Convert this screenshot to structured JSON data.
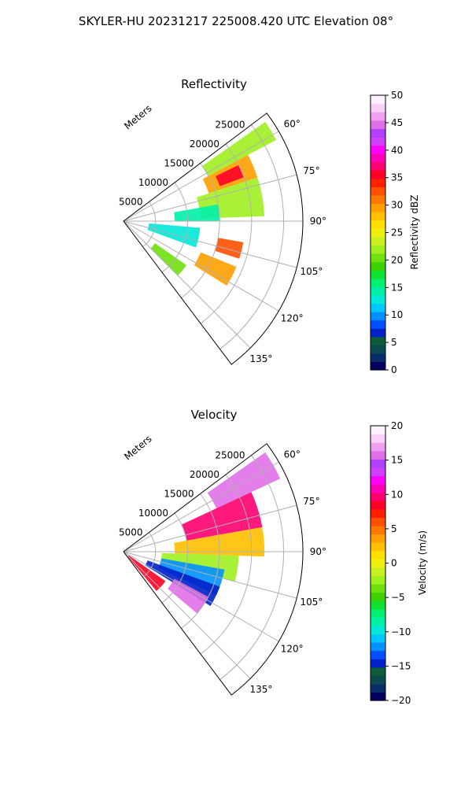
{
  "figure": {
    "suptitle": "SKYLER-HU  20231217  225008.420 UTC Elevation 08°"
  },
  "chart_data": [
    {
      "type": "heatmap",
      "projection": "polar-sector",
      "title": "Reflectivity",
      "radial_axis_label": "Meters",
      "radial_range": [
        0,
        28000
      ],
      "radial_ticks": [
        5000,
        10000,
        15000,
        20000,
        25000
      ],
      "radial_tick_labels": [
        "5000",
        "10000",
        "15000",
        "20000",
        "25000"
      ],
      "azimuth_range_deg": [
        53,
        143
      ],
      "azimuth_ticks": [
        60,
        75,
        90,
        105,
        120,
        135
      ],
      "azimuth_tick_labels": [
        "60°",
        "75°",
        "90°",
        "105°",
        "120°",
        "135°"
      ],
      "grid": true,
      "colorbar": {
        "label": "Reflectivity dBZ",
        "range": [
          0,
          50
        ],
        "ticks": [
          0,
          5,
          10,
          15,
          20,
          25,
          30,
          35,
          40,
          45,
          50
        ],
        "tick_labels": [
          "0",
          "5",
          "10",
          "15",
          "20",
          "25",
          "30",
          "35",
          "40",
          "45",
          "50"
        ],
        "colors": [
          "#02005c",
          "#0a2d6a",
          "#0b4a4e",
          "#0f5b3a",
          "#0020c8",
          "#0050ff",
          "#0090ff",
          "#00c8ff",
          "#00e8d8",
          "#00f0a8",
          "#00f070",
          "#10e030",
          "#40d000",
          "#70e010",
          "#a0f020",
          "#c8f020",
          "#f0f010",
          "#ffe000",
          "#ffc000",
          "#ffa000",
          "#ff7800",
          "#ff5000",
          "#ff2000",
          "#ff0028",
          "#ff0070",
          "#ff00b4",
          "#ff00ff",
          "#d040ff",
          "#b040ff",
          "#e070e8",
          "#f0a0f0",
          "#f8d0f8",
          "#fff0ff"
        ]
      },
      "regions": [
        {
          "az": [
            55,
            62
          ],
          "r": [
            15000,
            27000
          ],
          "value": 22
        },
        {
          "az": [
            62,
            72
          ],
          "r": [
            14000,
            22000
          ],
          "value": 30
        },
        {
          "az": [
            64,
            70
          ],
          "r": [
            16000,
            20000
          ],
          "value": 36
        },
        {
          "az": [
            72,
            88
          ],
          "r": [
            12000,
            22000
          ],
          "value": 22
        },
        {
          "az": [
            80,
            90
          ],
          "r": [
            8000,
            15000
          ],
          "value": 14
        },
        {
          "az": [
            95,
            110
          ],
          "r": [
            4000,
            12000
          ],
          "value": 13
        },
        {
          "az": [
            100,
            108
          ],
          "r": [
            15000,
            19000
          ],
          "value": 32
        },
        {
          "az": [
            112,
            122
          ],
          "r": [
            13000,
            19000
          ],
          "value": 30
        },
        {
          "az": [
            125,
            135
          ],
          "r": [
            6000,
            12000
          ],
          "value": 20
        }
      ]
    },
    {
      "type": "heatmap",
      "projection": "polar-sector",
      "title": "Velocity",
      "radial_axis_label": "Meters",
      "radial_range": [
        0,
        28000
      ],
      "radial_ticks": [
        5000,
        10000,
        15000,
        20000,
        25000
      ],
      "radial_tick_labels": [
        "5000",
        "10000",
        "15000",
        "20000",
        "25000"
      ],
      "azimuth_range_deg": [
        53,
        143
      ],
      "azimuth_ticks": [
        60,
        75,
        90,
        105,
        120,
        135
      ],
      "azimuth_tick_labels": [
        "60°",
        "75°",
        "90°",
        "105°",
        "120°",
        "135°"
      ],
      "grid": true,
      "colorbar": {
        "label": "Velocity (m/s)",
        "range": [
          -20,
          20
        ],
        "ticks": [
          -20,
          -15,
          -10,
          -5,
          0,
          5,
          10,
          15,
          20
        ],
        "tick_labels": [
          "−20",
          "−15",
          "−10",
          "−5",
          "0",
          "5",
          "10",
          "15",
          "20"
        ],
        "colors": [
          "#02005c",
          "#0a2d6a",
          "#0b4a4e",
          "#0f5b3a",
          "#0020c8",
          "#0050ff",
          "#0090ff",
          "#00c8ff",
          "#00e8d8",
          "#00f0a8",
          "#00f070",
          "#10e030",
          "#40d000",
          "#70e010",
          "#a0f020",
          "#c8f020",
          "#f0f010",
          "#ffe000",
          "#ffc000",
          "#ffa000",
          "#ff7800",
          "#ff5000",
          "#ff2000",
          "#ff0028",
          "#ff0070",
          "#ff00b4",
          "#ff00ff",
          "#d040ff",
          "#b040ff",
          "#e070e8",
          "#f0a0f0",
          "#f8d0f8",
          "#fff0ff"
        ]
      },
      "regions": [
        {
          "az": [
            55,
            65
          ],
          "r": [
            16000,
            27000
          ],
          "value": 16
        },
        {
          "az": [
            65,
            80
          ],
          "r": [
            10000,
            22000
          ],
          "value": 10
        },
        {
          "az": [
            80,
            92
          ],
          "r": [
            8000,
            22000
          ],
          "value": 3
        },
        {
          "az": [
            92,
            105
          ],
          "r": [
            6000,
            18000
          ],
          "value": -3
        },
        {
          "az": [
            100,
            115
          ],
          "r": [
            6000,
            16000
          ],
          "value": -12
        },
        {
          "az": [
            110,
            122
          ],
          "r": [
            4000,
            16000
          ],
          "value": -14
        },
        {
          "az": [
            118,
            130
          ],
          "r": [
            9000,
            15000
          ],
          "value": 16
        },
        {
          "az": [
            125,
            140
          ],
          "r": [
            1000,
            8000
          ],
          "value": 8
        }
      ]
    }
  ]
}
